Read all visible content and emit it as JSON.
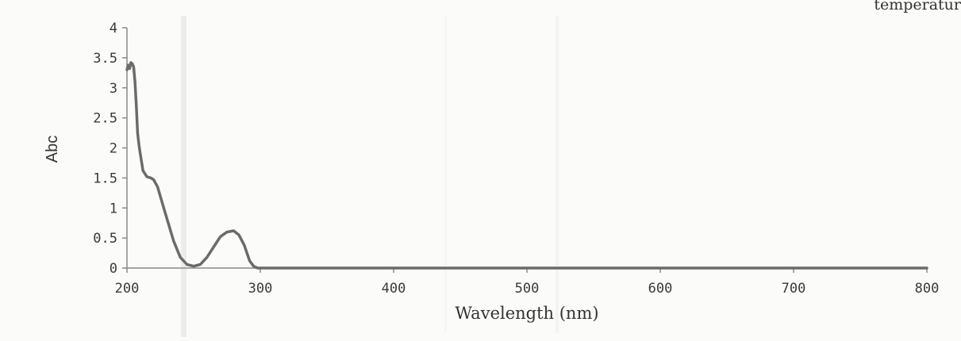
{
  "corner_text": "temperatur",
  "chart_data": {
    "type": "line",
    "title": "",
    "xlabel": "Wavelength (nm)",
    "ylabel": "Abc",
    "xlim": [
      200,
      800
    ],
    "ylim": [
      0,
      4
    ],
    "xticks": [
      200,
      300,
      400,
      500,
      600,
      700,
      800
    ],
    "yticks": [
      0,
      0.5,
      1,
      1.5,
      2,
      2.5,
      3,
      3.5,
      4
    ],
    "ytick_labels": [
      "0",
      "0.5",
      "1",
      "1.5",
      "2",
      "2.5",
      "3",
      "3.5",
      "4"
    ],
    "xtick_labels": [
      "200",
      "300",
      "400",
      "500",
      "600",
      "700",
      "800"
    ],
    "grid": false,
    "legend": "none",
    "line_color": "#6b6b6b",
    "series": [
      {
        "x": [
          200,
          201,
          202,
          203,
          204,
          205,
          206,
          207,
          208,
          209,
          210,
          212,
          215,
          218,
          220,
          223,
          226,
          230,
          235,
          240,
          245,
          250,
          255,
          260,
          265,
          270,
          275,
          280,
          284,
          288,
          292,
          295,
          298,
          300,
          350,
          400,
          450,
          500,
          550,
          600,
          650,
          700,
          750,
          800
        ],
        "y": [
          3.3,
          3.38,
          3.32,
          3.42,
          3.4,
          3.35,
          3.1,
          2.7,
          2.25,
          2.05,
          1.9,
          1.62,
          1.52,
          1.5,
          1.47,
          1.35,
          1.12,
          0.82,
          0.45,
          0.18,
          0.06,
          0.03,
          0.06,
          0.18,
          0.35,
          0.52,
          0.6,
          0.62,
          0.55,
          0.38,
          0.12,
          0.03,
          0.0,
          0.0,
          0.0,
          0.0,
          0.0,
          0.0,
          0.0,
          0.0,
          0.0,
          0.0,
          0.0,
          0.0
        ]
      }
    ]
  }
}
